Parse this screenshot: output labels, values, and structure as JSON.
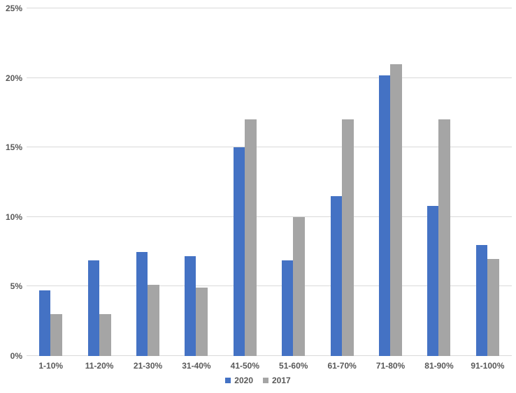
{
  "chart_data": {
    "type": "bar",
    "title": "",
    "xlabel": "",
    "ylabel": "",
    "categories": [
      "1-10%",
      "11-20%",
      "21-30%",
      "31-40%",
      "41-50%",
      "51-60%",
      "61-70%",
      "71-80%",
      "81-90%",
      "91-100%"
    ],
    "series": [
      {
        "name": "2020",
        "color": "#4472C4",
        "values": [
          4.7,
          6.9,
          7.5,
          7.2,
          15,
          6.9,
          11.5,
          20.2,
          10.8,
          8
        ]
      },
      {
        "name": "2017",
        "color": "#A5A5A5",
        "values": [
          3,
          3,
          5.1,
          4.9,
          17,
          10,
          17,
          21,
          17,
          7
        ]
      }
    ],
    "ylim": [
      0,
      25
    ],
    "yticks": [
      {
        "value": 0,
        "label": "0%"
      },
      {
        "value": 5,
        "label": "5%"
      },
      {
        "value": 10,
        "label": "10%"
      },
      {
        "value": 15,
        "label": "15%"
      },
      {
        "value": 20,
        "label": "20%"
      },
      {
        "value": 25,
        "label": "25%"
      }
    ],
    "grid": true,
    "legend_position": "bottom-center"
  },
  "colors": {
    "background": "#FFFFFF",
    "gridline": "#D9D9D9",
    "axis_text": "#595959",
    "series_2020": "#4472C4",
    "series_2017": "#A5A5A5"
  }
}
